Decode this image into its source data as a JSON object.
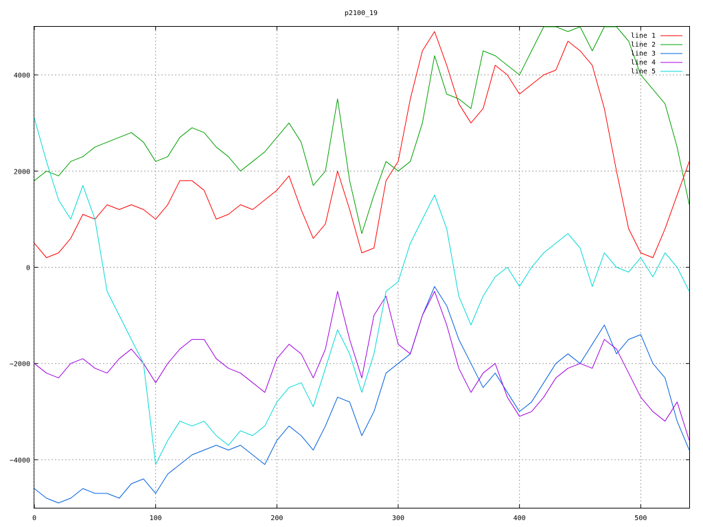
{
  "chart_data": {
    "type": "line",
    "title": "p2100_19",
    "xlabel": "",
    "ylabel": "",
    "xlim": [
      0,
      540
    ],
    "ylim": [
      -5000,
      5000
    ],
    "x_ticks": [
      0,
      100,
      200,
      300,
      400,
      500
    ],
    "y_ticks": [
      -4000,
      -2000,
      0,
      2000,
      4000
    ],
    "grid": true,
    "legend_position": "top-right",
    "series": [
      {
        "name": "line 1",
        "color": "#ff0000",
        "x": [
          0,
          10,
          20,
          30,
          40,
          50,
          60,
          70,
          80,
          90,
          100,
          110,
          120,
          130,
          140,
          150,
          160,
          170,
          180,
          190,
          200,
          210,
          220,
          230,
          240,
          250,
          260,
          270,
          280,
          290,
          300,
          310,
          320,
          330,
          340,
          350,
          360,
          370,
          380,
          390,
          400,
          410,
          420,
          430,
          440,
          450,
          460,
          470,
          480,
          490,
          500,
          510,
          520,
          530,
          540
        ],
        "y": [
          500,
          200,
          300,
          600,
          1100,
          1000,
          1300,
          1200,
          1300,
          1200,
          1000,
          1300,
          1800,
          1800,
          1600,
          1000,
          1100,
          1300,
          1200,
          1400,
          1600,
          1900,
          1200,
          600,
          900,
          2000,
          1200,
          300,
          400,
          1800,
          2200,
          3500,
          4500,
          4900,
          4200,
          3400,
          3000,
          3300,
          4200,
          4000,
          3600,
          3800,
          4000,
          4100,
          4700,
          4500,
          4200,
          3300,
          2000,
          800,
          300,
          200,
          800,
          1500,
          2200
        ]
      },
      {
        "name": "line 2",
        "color": "#00a000",
        "x": [
          0,
          10,
          20,
          30,
          40,
          50,
          60,
          70,
          80,
          90,
          100,
          110,
          120,
          130,
          140,
          150,
          160,
          170,
          180,
          190,
          200,
          210,
          220,
          230,
          240,
          250,
          260,
          270,
          280,
          290,
          300,
          310,
          320,
          330,
          340,
          350,
          360,
          370,
          380,
          390,
          400,
          410,
          420,
          430,
          440,
          450,
          460,
          470,
          480,
          490,
          500,
          510,
          520,
          530,
          540
        ],
        "y": [
          1800,
          2000,
          1900,
          2200,
          2300,
          2500,
          2600,
          2700,
          2800,
          2600,
          2200,
          2300,
          2700,
          2900,
          2800,
          2500,
          2300,
          2000,
          2200,
          2400,
          2700,
          3000,
          2600,
          1700,
          2000,
          3500,
          1800,
          700,
          1500,
          2200,
          2000,
          2200,
          3000,
          4400,
          3600,
          3500,
          3300,
          4500,
          4400,
          4200,
          4000,
          4500,
          5000,
          5000,
          4900,
          5000,
          4500,
          5000,
          5000,
          4700,
          4000,
          3700,
          3400,
          2500,
          1300
        ]
      },
      {
        "name": "line 3",
        "color": "#0060e0",
        "x": [
          0,
          10,
          20,
          30,
          40,
          50,
          60,
          70,
          80,
          90,
          100,
          110,
          120,
          130,
          140,
          150,
          160,
          170,
          180,
          190,
          200,
          210,
          220,
          230,
          240,
          250,
          260,
          270,
          280,
          290,
          300,
          310,
          320,
          330,
          340,
          350,
          360,
          370,
          380,
          390,
          400,
          410,
          420,
          430,
          440,
          450,
          460,
          470,
          480,
          490,
          500,
          510,
          520,
          530,
          540
        ],
        "y": [
          -4600,
          -4800,
          -4900,
          -4800,
          -4600,
          -4700,
          -4700,
          -4800,
          -4500,
          -4400,
          -4700,
          -4300,
          -4100,
          -3900,
          -3800,
          -3700,
          -3800,
          -3700,
          -3900,
          -4100,
          -3600,
          -3300,
          -3500,
          -3800,
          -3300,
          -2700,
          -2800,
          -3500,
          -3000,
          -2200,
          -2000,
          -1800,
          -1000,
          -400,
          -800,
          -1500,
          -2000,
          -2500,
          -2200,
          -2600,
          -3000,
          -2800,
          -2400,
          -2000,
          -1800,
          -2000,
          -1600,
          -1200,
          -1800,
          -1500,
          -1400,
          -2000,
          -2300,
          -3200,
          -3800
        ]
      },
      {
        "name": "line 4",
        "color": "#a000e0",
        "x": [
          0,
          10,
          20,
          30,
          40,
          50,
          60,
          70,
          80,
          90,
          100,
          110,
          120,
          130,
          140,
          150,
          160,
          170,
          180,
          190,
          200,
          210,
          220,
          230,
          240,
          250,
          260,
          270,
          280,
          290,
          300,
          310,
          320,
          330,
          340,
          350,
          360,
          370,
          380,
          390,
          400,
          410,
          420,
          430,
          440,
          450,
          460,
          470,
          480,
          490,
          500,
          510,
          520,
          530,
          540
        ],
        "y": [
          -2000,
          -2200,
          -2300,
          -2000,
          -1900,
          -2100,
          -2200,
          -1900,
          -1700,
          -2000,
          -2400,
          -2000,
          -1700,
          -1500,
          -1500,
          -1900,
          -2100,
          -2200,
          -2400,
          -2600,
          -1900,
          -1600,
          -1800,
          -2300,
          -1700,
          -500,
          -1500,
          -2300,
          -1000,
          -600,
          -1600,
          -1800,
          -1000,
          -500,
          -1200,
          -2100,
          -2600,
          -2200,
          -2000,
          -2700,
          -3100,
          -3000,
          -2700,
          -2300,
          -2100,
          -2000,
          -2100,
          -1500,
          -1700,
          -2200,
          -2700,
          -3000,
          -3200,
          -2800,
          -3600
        ]
      },
      {
        "name": "line 5",
        "color": "#00d8d8",
        "x": [
          0,
          10,
          20,
          30,
          40,
          50,
          60,
          70,
          80,
          90,
          100,
          110,
          120,
          130,
          140,
          150,
          160,
          170,
          180,
          190,
          200,
          210,
          220,
          230,
          240,
          250,
          260,
          270,
          280,
          290,
          300,
          310,
          320,
          330,
          340,
          350,
          360,
          370,
          380,
          390,
          400,
          410,
          420,
          430,
          440,
          450,
          460,
          470,
          480,
          490,
          500,
          510,
          520,
          530,
          540
        ],
        "y": [
          3100,
          2200,
          1400,
          1000,
          1700,
          1000,
          -500,
          -1000,
          -1500,
          -2000,
          -4100,
          -3600,
          -3200,
          -3300,
          -3200,
          -3500,
          -3700,
          -3400,
          -3500,
          -3300,
          -2800,
          -2500,
          -2400,
          -2900,
          -2100,
          -1300,
          -1800,
          -2600,
          -1800,
          -500,
          -300,
          500,
          1000,
          1500,
          800,
          -600,
          -1200,
          -600,
          -200,
          0,
          -400,
          0,
          300,
          500,
          700,
          400,
          -400,
          300,
          0,
          -100,
          200,
          -200,
          300,
          0,
          -500
        ]
      }
    ]
  }
}
